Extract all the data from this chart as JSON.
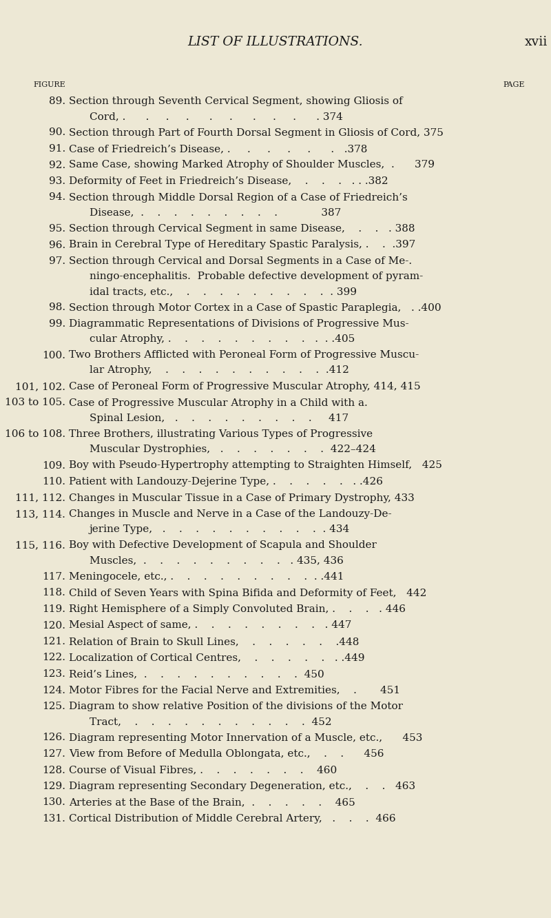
{
  "bg_color": "#EDE8D5",
  "title_text": "LIST OF ILLUSTRATIONS.",
  "title_right": "xvii",
  "header_left": "FIGURE",
  "header_right": "PAGE",
  "entries": [
    {
      "num": "89.",
      "lines": [
        "Section through Seventh Cervical Segment, showing Gliosis of",
        "Cord, .      .     .     .      .     .      .     .     .      . 374"
      ],
      "cont": true
    },
    {
      "num": "90.",
      "lines": [
        "Section through Part of Fourth Dorsal Segment in Gliosis of Cord, 375"
      ],
      "cont": false
    },
    {
      "num": "91.",
      "lines": [
        "Case of Friedreich’s Disease, .     .     .     .     .      .   .378"
      ],
      "cont": false
    },
    {
      "num": "92.",
      "lines": [
        "Same Case, showing Marked Atrophy of Shoulder Muscles,  .      379"
      ],
      "cont": false
    },
    {
      "num": "93.",
      "lines": [
        "Deformity of Feet in Friedreich’s Disease,    .    .    .   . . .382"
      ],
      "cont": false
    },
    {
      "num": "94.",
      "lines": [
        "Section through Middle Dorsal Region of a Case of Friedreich’s",
        "Disease,  .    .    .    .    .    .    .    .    .             387"
      ],
      "cont": true
    },
    {
      "num": "95.",
      "lines": [
        "Section through Cervical Segment in same Disease,    .    .   . 388"
      ],
      "cont": false
    },
    {
      "num": "96.",
      "lines": [
        "Brain in Cerebral Type of Hereditary Spastic Paralysis, .    .  .397"
      ],
      "cont": false
    },
    {
      "num": "97.",
      "lines": [
        "Section through Cervical and Dorsal Segments in a Case of Me-.",
        "ningo-encephalitis.  Probable defective development of pyram-",
        "idal tracts, etc.,    .    .    .    .    .    .    .    .    .  . 399"
      ],
      "cont": true
    },
    {
      "num": "98.",
      "lines": [
        "Section through Motor Cortex in a Case of Spastic Paraplegia,   . .400"
      ],
      "cont": false
    },
    {
      "num": "99.",
      "lines": [
        "Diagrammatic Representations of Divisions of Progressive Mus-",
        "cular Atrophy, .    .    .    .    .    .    .    .    .   .  . .405"
      ],
      "cont": true
    },
    {
      "num": "100.",
      "lines": [
        "Two Brothers Afflicted with Peroneal Form of Progressive Muscu-",
        "lar Atrophy,    .    .    .    .    .    .    .    .    .    .  .412"
      ],
      "cont": true
    },
    {
      "num": "101, 102.",
      "lines": [
        "Case of Peroneal Form of Progressive Muscular Atrophy, 414, 415"
      ],
      "cont": false
    },
    {
      "num": "103 to 105.",
      "lines": [
        "Case of Progressive Muscular Atrophy in a Child with a.",
        "Spinal Lesion,   .    .    .    .    .    .    .    .    .     417"
      ],
      "cont": true
    },
    {
      "num": "106 to 108.",
      "lines": [
        "Three Brothers, illustrating Various Types of Progressive",
        "Muscular Dystrophies,   .    .    .    .    .    .    .  422–424"
      ],
      "cont": true
    },
    {
      "num": "109.",
      "lines": [
        "Boy with Pseudo-Hypertrophy attempting to Straighten Himself,   425"
      ],
      "cont": false
    },
    {
      "num": "110.",
      "lines": [
        "Patient with Landouzy-Dejerine Type, .    .    .    .    .   . .426"
      ],
      "cont": false
    },
    {
      "num": "111, 112.",
      "lines": [
        "Changes in Muscular Tissue in a Case of Primary Dystrophy, 433"
      ],
      "cont": false
    },
    {
      "num": "113, 114.",
      "lines": [
        "Changes in Muscle and Nerve in a Case of the Landouzy-De-",
        "jerine Type,   .    .    .    .    .    .    .    .    .    .  . 434"
      ],
      "cont": true
    },
    {
      "num": "115, 116.",
      "lines": [
        "Boy with Defective Development of Scapula and Shoulder",
        "Muscles,  .    .    .    .    .    .    .    .    .   . 435, 436"
      ],
      "cont": true
    },
    {
      "num": "117.",
      "lines": [
        "Meningocele, etc., .    .    .    .    .    .    .    .    .  . .441"
      ],
      "cont": false
    },
    {
      "num": "118.",
      "lines": [
        "Child of Seven Years with Spina Bifida and Deformity of Feet,   442"
      ],
      "cont": false
    },
    {
      "num": "119.",
      "lines": [
        "Right Hemisphere of a Simply Convoluted Brain, .    .    .   . 446"
      ],
      "cont": false
    },
    {
      "num": "120.",
      "lines": [
        "Mesial Aspect of same, .    .    .    .    .    .    .    .   . 447"
      ],
      "cont": false
    },
    {
      "num": "121.",
      "lines": [
        "Relation of Brain to Skull Lines,    .    .    .    .    .    .448"
      ],
      "cont": false
    },
    {
      "num": "122.",
      "lines": [
        "Localization of Cortical Centres,    .    .    .    .    .   . .449"
      ],
      "cont": false
    },
    {
      "num": "123.",
      "lines": [
        "Reid’s Lines,  .    .    .    .    .    .    .    .    .    .  450"
      ],
      "cont": false
    },
    {
      "num": "124.",
      "lines": [
        "Motor Fibres for the Facial Nerve and Extremities,    .       451"
      ],
      "cont": false
    },
    {
      "num": "125.",
      "lines": [
        "Diagram to show relative Position of the divisions of the Motor",
        "Tract,    .    .    .    .    .    .    .    .    .    .    .  452"
      ],
      "cont": true
    },
    {
      "num": "126.",
      "lines": [
        "Diagram representing Motor Innervation of a Muscle, etc.,      453"
      ],
      "cont": false
    },
    {
      "num": "127.",
      "lines": [
        "View from Before of Medulla Oblongata, etc.,    .    .      456"
      ],
      "cont": false
    },
    {
      "num": "128.",
      "lines": [
        "Course of Visual Fibres, .    .    .    .    .    .    .    460"
      ],
      "cont": false
    },
    {
      "num": "129.",
      "lines": [
        "Diagram representing Secondary Degeneration, etc.,    .    .   463"
      ],
      "cont": false
    },
    {
      "num": "130.",
      "lines": [
        "Arteries at the Base of the Brain,  .    .    .    .    .    465"
      ],
      "cont": false
    },
    {
      "num": "131.",
      "lines": [
        "Cortical Distribution of Middle Cerebral Artery,   .    .    .  466"
      ],
      "cont": false
    }
  ]
}
